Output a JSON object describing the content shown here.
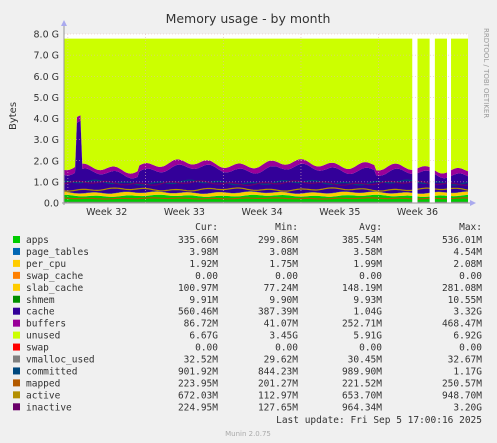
{
  "chart_data": {
    "type": "area",
    "title": "Memory usage - by month",
    "ylabel": "Bytes",
    "side_label": "RRDTOOL / TOBI OETIKER",
    "x_categories": [
      "Week 32",
      "Week 33",
      "Week 34",
      "Week 35",
      "Week 36"
    ],
    "y_ticks": [
      "0.0",
      "1.0 G",
      "2.0 G",
      "3.0 G",
      "4.0 G",
      "5.0 G",
      "6.0 G",
      "7.0 G",
      "8.0 G"
    ],
    "ylim": [
      0,
      8.0
    ],
    "y_unit": "G",
    "grid": true,
    "stack_order_note": "bottom to top",
    "stacked_values_G": {
      "apps": 0.34,
      "page_tables": 0.004,
      "per_cpu": 0.002,
      "swap_cache": 0.0,
      "slab_cache": 0.1,
      "shmem": 0.01,
      "cache": 0.56,
      "buffers": 0.09,
      "unused": 6.67
    },
    "summary": {
      "total_approx_G": 7.78,
      "spike_x_week_fraction": 0.18,
      "spike_peak_G": 4.2
    },
    "columns": [
      "Cur:",
      "Min:",
      "Avg:",
      "Max:"
    ],
    "series": [
      {
        "name": "apps",
        "color": "#00cc00",
        "cur": "335.66M",
        "min": "299.86M",
        "avg": "385.54M",
        "max": "536.01M"
      },
      {
        "name": "page_tables",
        "color": "#0066b3",
        "cur": "3.98M",
        "min": "3.08M",
        "avg": "3.58M",
        "max": "4.54M"
      },
      {
        "name": "per_cpu",
        "color": "#ffcc00",
        "cur": "1.92M",
        "min": "1.75M",
        "avg": "1.99M",
        "max": "2.08M"
      },
      {
        "name": "swap_cache",
        "color": "#ff8000",
        "cur": "0.00",
        "min": "0.00",
        "avg": "0.00",
        "max": "0.00"
      },
      {
        "name": "slab_cache",
        "color": "#ffcc00",
        "cur": "100.97M",
        "min": "77.24M",
        "avg": "148.19M",
        "max": "281.08M"
      },
      {
        "name": "shmem",
        "color": "#008f00",
        "cur": "9.91M",
        "min": "9.90M",
        "avg": "9.93M",
        "max": "10.55M"
      },
      {
        "name": "cache",
        "color": "#330099",
        "cur": "560.46M",
        "min": "387.39M",
        "avg": "1.04G",
        "max": "3.32G"
      },
      {
        "name": "buffers",
        "color": "#990099",
        "cur": "86.72M",
        "min": "41.07M",
        "avg": "252.71M",
        "max": "468.47M"
      },
      {
        "name": "unused",
        "color": "#ccff00",
        "cur": "6.67G",
        "min": "3.45G",
        "avg": "5.91G",
        "max": "6.92G"
      },
      {
        "name": "swap",
        "color": "#ff0000",
        "cur": "0.00",
        "min": "0.00",
        "avg": "0.00",
        "max": "0.00"
      },
      {
        "name": "vmalloc_used",
        "color": "#808080",
        "cur": "32.52M",
        "min": "29.62M",
        "avg": "30.45M",
        "max": "32.67M"
      },
      {
        "name": "committed",
        "color": "#00487d",
        "cur": "901.92M",
        "min": "844.23M",
        "avg": "989.90M",
        "max": "1.17G"
      },
      {
        "name": "mapped",
        "color": "#b35a00",
        "cur": "223.95M",
        "min": "201.27M",
        "avg": "221.52M",
        "max": "250.57M"
      },
      {
        "name": "active",
        "color": "#b38f00",
        "cur": "672.03M",
        "min": "112.97M",
        "avg": "653.70M",
        "max": "948.70M"
      },
      {
        "name": "inactive",
        "color": "#6b006b",
        "cur": "224.95M",
        "min": "127.65M",
        "avg": "964.34M",
        "max": "3.20G"
      }
    ],
    "last_update": "Last update: Fri Sep  5 17:00:16 2025",
    "footer": "Munin 2.0.75"
  }
}
